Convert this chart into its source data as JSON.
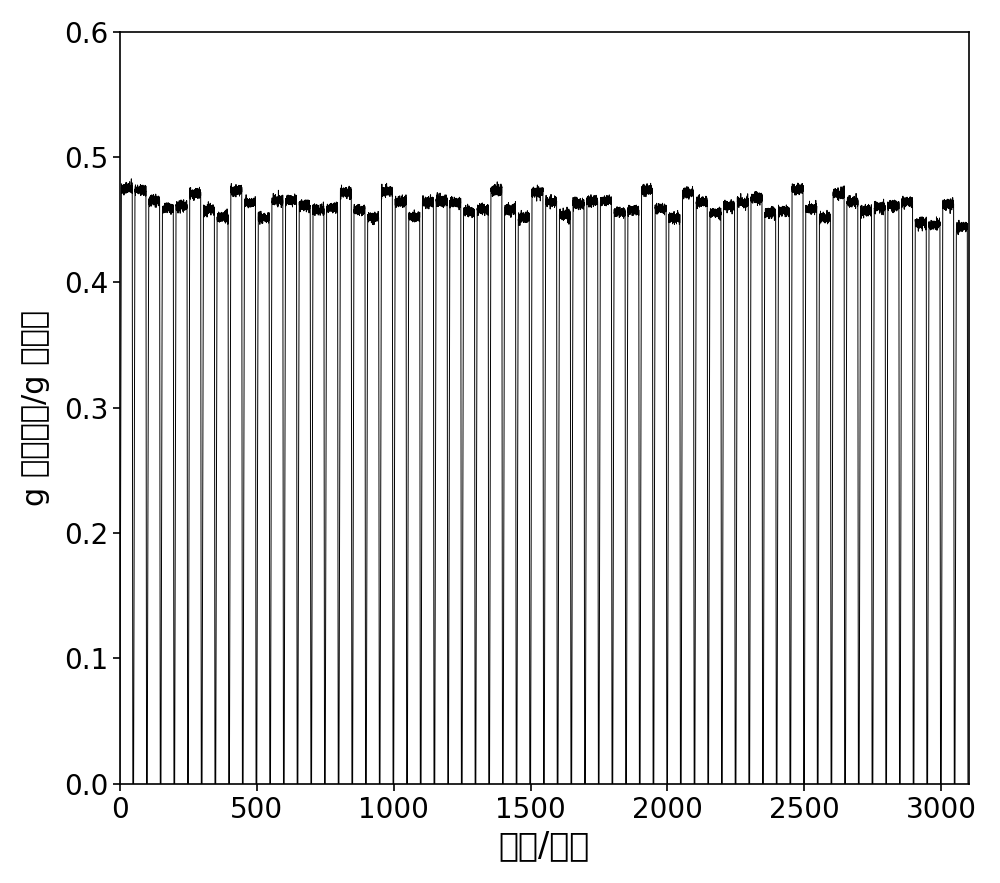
{
  "xlabel": "时间/分钟",
  "ylabel": "g 二氧化碳/g 催化剂",
  "xlim": [
    0,
    3100
  ],
  "ylim": [
    0.0,
    0.6
  ],
  "xticks": [
    0,
    500,
    1000,
    1500,
    2000,
    2500,
    3000
  ],
  "yticks": [
    0.0,
    0.1,
    0.2,
    0.3,
    0.4,
    0.5,
    0.6
  ],
  "line_color": "#000000",
  "background_color": "#ffffff",
  "total_cycles": 62,
  "total_time": 3100,
  "base_peak": 0.462,
  "cycle_period": 50,
  "xlabel_fontsize": 24,
  "ylabel_fontsize": 22,
  "tick_fontsize": 20
}
